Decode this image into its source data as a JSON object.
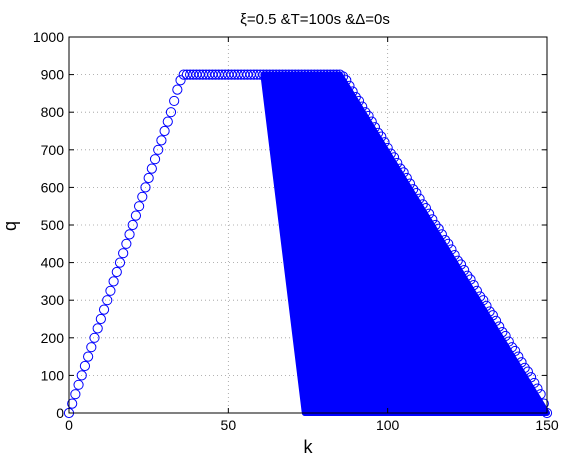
{
  "chart_data": {
    "type": "scatter",
    "title": "ξ=0.5 &T=100s &Δ=0s",
    "xlabel": "k",
    "ylabel": "q",
    "xlim": [
      0,
      150
    ],
    "ylim": [
      0,
      1000
    ],
    "xticks": [
      "0",
      "50",
      "100",
      "150"
    ],
    "yticks": [
      "0",
      "100",
      "200",
      "300",
      "400",
      "500",
      "600",
      "700",
      "800",
      "900",
      "1000"
    ],
    "grid": true,
    "marker": "o",
    "marker_color": "#0000ff",
    "series": [
      {
        "points": [
          [
            0,
            0
          ],
          [
            1,
            25
          ],
          [
            2,
            50
          ],
          [
            3,
            75
          ],
          [
            4,
            100
          ],
          [
            5,
            125
          ],
          [
            6,
            150
          ],
          [
            7,
            175
          ],
          [
            8,
            200
          ],
          [
            9,
            225
          ],
          [
            10,
            250
          ],
          [
            11,
            275
          ],
          [
            12,
            300
          ],
          [
            13,
            325
          ],
          [
            14,
            350
          ],
          [
            15,
            375
          ],
          [
            16,
            400
          ],
          [
            17,
            425
          ],
          [
            18,
            450
          ],
          [
            19,
            475
          ],
          [
            20,
            500
          ],
          [
            21,
            525
          ],
          [
            22,
            550
          ],
          [
            23,
            575
          ],
          [
            24,
            600
          ],
          [
            25,
            625
          ],
          [
            26,
            650
          ],
          [
            27,
            675
          ],
          [
            28,
            700
          ],
          [
            29,
            725
          ],
          [
            30,
            750
          ],
          [
            31,
            775
          ],
          [
            32,
            800
          ],
          [
            33,
            830
          ],
          [
            34,
            860
          ],
          [
            35,
            885
          ],
          [
            36,
            900
          ],
          [
            37,
            900
          ],
          [
            38,
            900
          ],
          [
            39,
            900
          ],
          [
            40,
            900
          ],
          [
            41,
            900
          ],
          [
            42,
            900
          ],
          [
            43,
            900
          ],
          [
            44,
            900
          ],
          [
            45,
            900
          ],
          [
            46,
            900
          ],
          [
            47,
            900
          ],
          [
            48,
            900
          ],
          [
            49,
            900
          ],
          [
            50,
            900
          ],
          [
            51,
            900
          ],
          [
            52,
            900
          ],
          [
            53,
            900
          ],
          [
            54,
            900
          ],
          [
            55,
            900
          ],
          [
            56,
            900
          ],
          [
            57,
            900
          ],
          [
            58,
            900
          ],
          [
            59,
            900
          ],
          [
            60,
            900
          ],
          [
            61,
            900
          ],
          [
            62,
            900
          ],
          [
            63,
            900
          ],
          [
            64,
            900
          ],
          [
            65,
            900
          ],
          [
            66,
            900
          ],
          [
            67,
            900
          ],
          [
            68,
            900
          ],
          [
            69,
            900
          ],
          [
            70,
            900
          ],
          [
            71,
            900
          ],
          [
            72,
            900
          ],
          [
            73,
            900
          ],
          [
            74,
            900
          ],
          [
            75,
            900
          ],
          [
            76,
            900
          ],
          [
            77,
            900
          ],
          [
            78,
            900
          ],
          [
            79,
            900
          ],
          [
            80,
            900
          ],
          [
            81,
            900
          ],
          [
            82,
            900
          ],
          [
            83,
            900
          ],
          [
            84,
            900
          ],
          [
            85,
            900
          ],
          [
            86,
            895
          ],
          [
            87,
            885
          ],
          [
            88,
            870
          ],
          [
            89,
            855
          ],
          [
            90,
            840
          ],
          [
            91,
            830
          ],
          [
            92,
            815
          ],
          [
            93,
            800
          ],
          [
            94,
            790
          ],
          [
            95,
            775
          ],
          [
            96,
            760
          ],
          [
            97,
            745
          ],
          [
            98,
            735
          ],
          [
            99,
            720
          ],
          [
            100,
            705
          ],
          [
            101,
            690
          ],
          [
            102,
            680
          ],
          [
            103,
            665
          ],
          [
            104,
            650
          ],
          [
            105,
            640
          ],
          [
            106,
            625
          ],
          [
            107,
            610
          ],
          [
            108,
            595
          ],
          [
            109,
            585
          ],
          [
            110,
            570
          ],
          [
            111,
            555
          ],
          [
            112,
            545
          ],
          [
            113,
            530
          ],
          [
            114,
            515
          ],
          [
            115,
            500
          ],
          [
            116,
            490
          ],
          [
            117,
            475
          ],
          [
            118,
            460
          ],
          [
            119,
            450
          ],
          [
            120,
            435
          ],
          [
            121,
            420
          ],
          [
            122,
            405
          ],
          [
            123,
            395
          ],
          [
            124,
            380
          ],
          [
            125,
            365
          ],
          [
            126,
            355
          ],
          [
            127,
            340
          ],
          [
            128,
            325
          ],
          [
            129,
            310
          ],
          [
            130,
            300
          ],
          [
            131,
            285
          ],
          [
            132,
            270
          ],
          [
            133,
            260
          ],
          [
            134,
            245
          ],
          [
            135,
            230
          ],
          [
            136,
            215
          ],
          [
            137,
            205
          ],
          [
            138,
            190
          ],
          [
            139,
            175
          ],
          [
            140,
            165
          ],
          [
            141,
            150
          ],
          [
            142,
            135
          ],
          [
            143,
            120
          ],
          [
            144,
            110
          ],
          [
            145,
            95
          ],
          [
            146,
            80
          ],
          [
            147,
            65
          ],
          [
            148,
            50
          ],
          [
            149,
            25
          ],
          [
            150,
            0
          ]
        ]
      }
    ],
    "filled_region": {
      "color": "#0000ff",
      "polygon": [
        [
          61,
          900
        ],
        [
          85,
          900
        ],
        [
          150,
          0
        ],
        [
          74,
          0
        ]
      ]
    }
  }
}
